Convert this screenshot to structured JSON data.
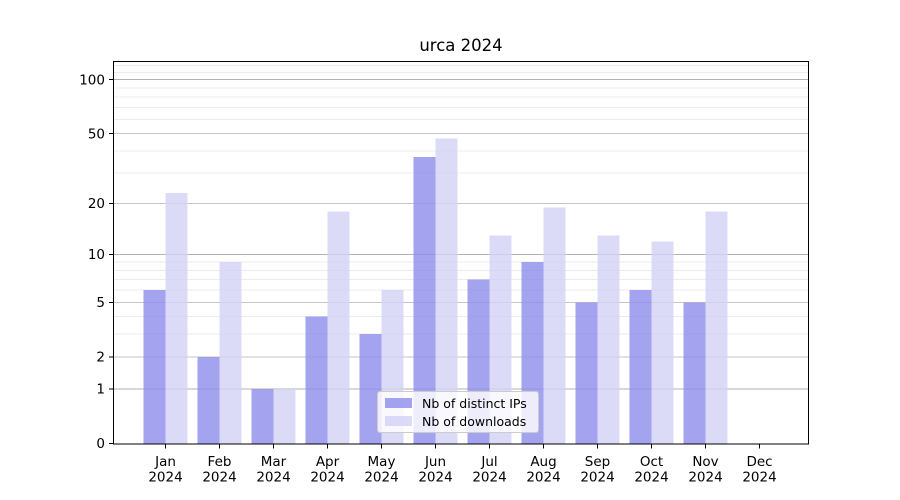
{
  "chart_data": {
    "type": "bar",
    "title": "urca 2024",
    "xlabel": "",
    "ylabel": "",
    "yscale": "log1p",
    "ylim": [
      0,
      125
    ],
    "grid": "both",
    "legend_position": "lower center",
    "yticks": [
      100,
      50,
      20,
      10,
      5,
      2,
      1,
      0
    ],
    "minor_gridlines": [
      3,
      4,
      6,
      7,
      8,
      9,
      30,
      40,
      60,
      70,
      80,
      90,
      110,
      120
    ],
    "months": [
      "Jan",
      "Feb",
      "Mar",
      "Apr",
      "May",
      "Jun",
      "Jul",
      "Aug",
      "Sep",
      "Oct",
      "Nov",
      "Dec"
    ],
    "year": "2024",
    "series": [
      {
        "name": "Nb of distinct IPs",
        "color": "rgba(140,140,235,0.8)",
        "values": [
          6,
          2,
          1,
          4,
          3,
          37,
          7,
          9,
          5,
          6,
          5,
          0
        ]
      },
      {
        "name": "Nb of downloads",
        "color": "rgba(210,210,246,0.8)",
        "values": [
          23,
          9,
          1,
          18,
          6,
          47,
          13,
          19,
          13,
          12,
          18,
          0
        ]
      }
    ]
  },
  "colors": {
    "bar_ips": "#a3a3ef",
    "bar_downloads": "#dbdbf8",
    "grid_major": "#b2b2b2",
    "grid_labeled": "#c6c6c6",
    "grid_minor": "#ececec",
    "axis": "#000000",
    "text": "#000000"
  }
}
